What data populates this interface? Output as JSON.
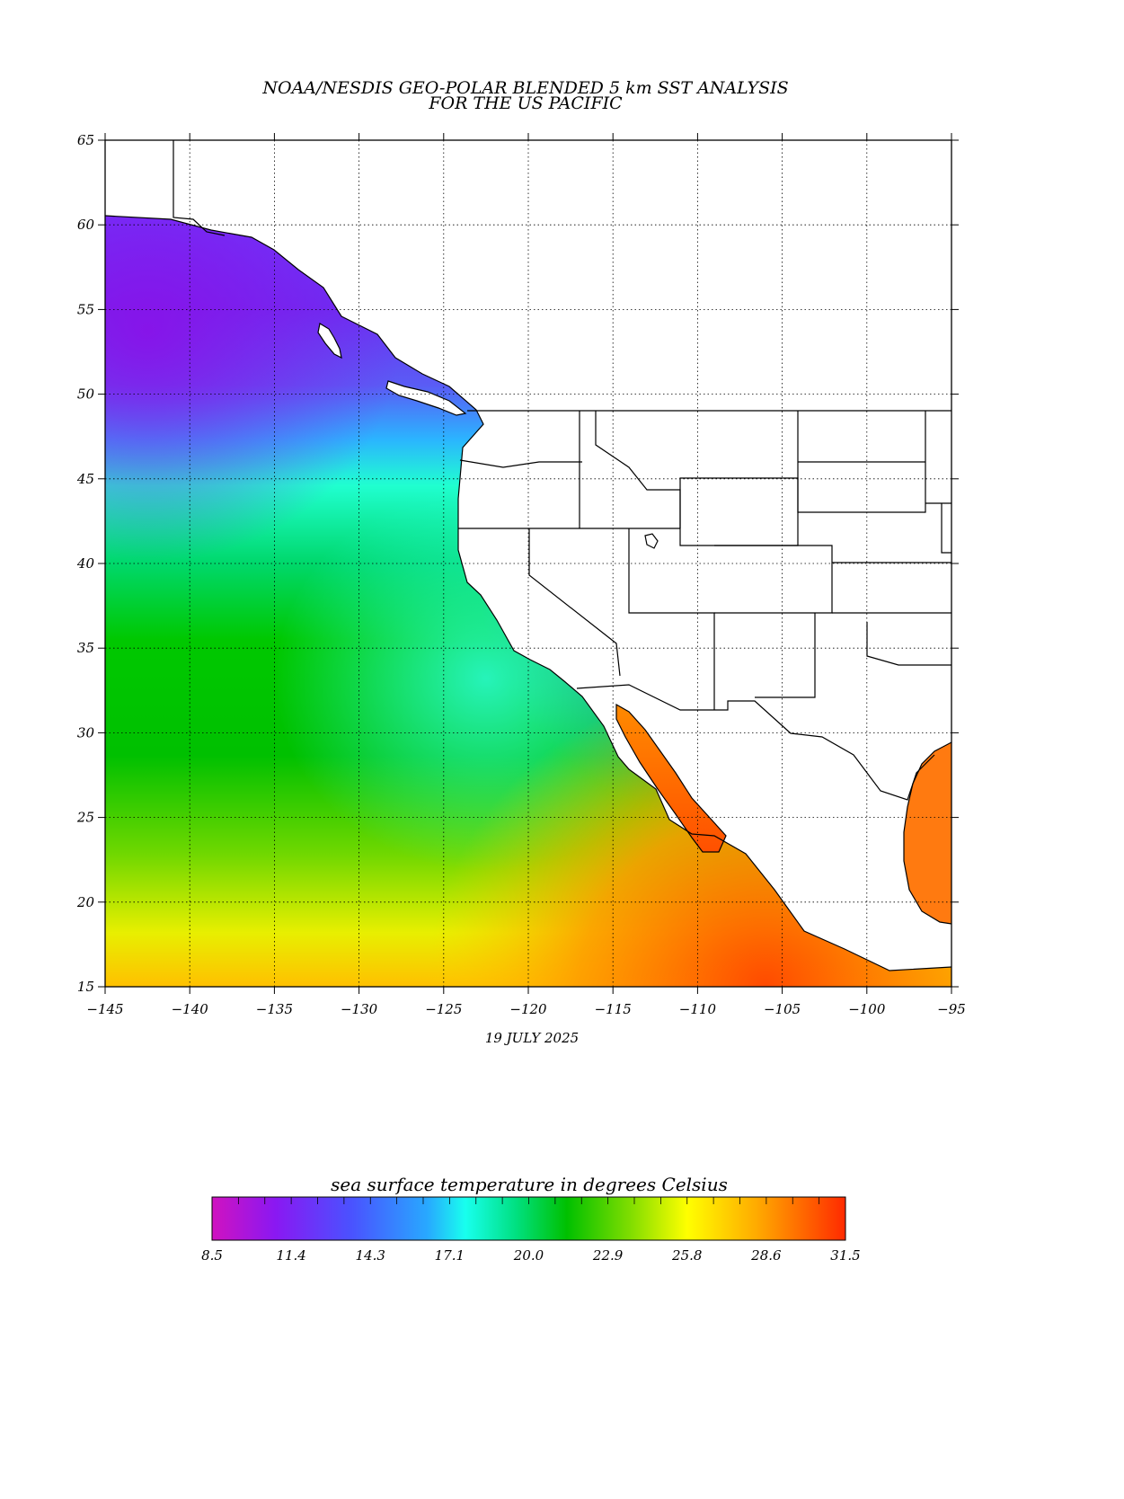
{
  "title": {
    "line1": "NOAA/NESDIS GEO-POLAR BLENDED 5 km SST ANALYSIS",
    "line2": "FOR THE US PACIFIC"
  },
  "date": "19 JULY 2025",
  "map": {
    "lon_range": [
      -145,
      -95
    ],
    "lat_range": [
      15,
      65
    ],
    "lon_ticks": [
      "-145",
      "-140",
      "-135",
      "-130",
      "-125",
      "-120",
      "-115",
      "-110",
      "-105",
      "-100",
      "-95"
    ],
    "lat_ticks": [
      "65",
      "60",
      "55",
      "50",
      "45",
      "40",
      "35",
      "30",
      "25",
      "20",
      "15"
    ],
    "grid": "dotted"
  },
  "colorbar": {
    "title": "sea surface temperature in degrees Celsius",
    "labels": [
      "8.5",
      "11.4",
      "14.3",
      "17.1",
      "20.0",
      "22.9",
      "25.8",
      "28.6",
      "31.5"
    ],
    "colors": [
      "#d012c0",
      "#8a18f2",
      "#4a52ff",
      "#28a8ff",
      "#18ffee",
      "#00d040",
      "#00c000",
      "#b0ee00",
      "#ffff00",
      "#ffaa00",
      "#ff2a00"
    ]
  },
  "colors": {
    "land": "#ffffff",
    "outline": "#000000"
  }
}
